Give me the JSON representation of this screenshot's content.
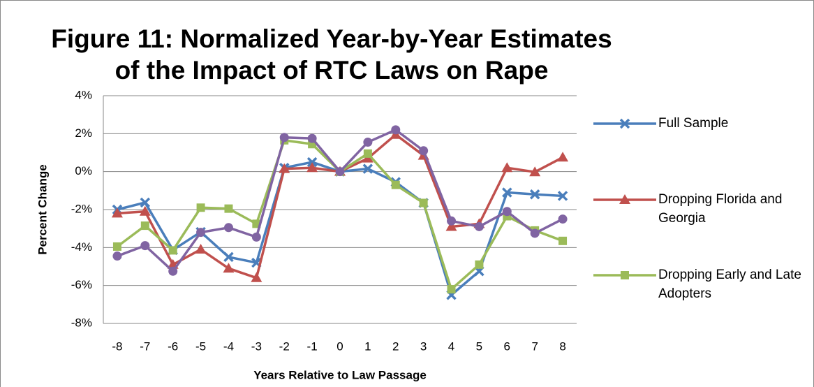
{
  "chart_data": {
    "type": "line",
    "title": [
      "Figure 11: Normalized Year-by-Year Estimates",
      "of the Impact of RTC Laws on Rape"
    ],
    "xlabel": "Years Relative to Law Passage",
    "ylabel": "Percent Change",
    "categories": [
      "-8",
      "-7",
      "-6",
      "-5",
      "-4",
      "-3",
      "-2",
      "-1",
      "0",
      "1",
      "2",
      "3",
      "4",
      "5",
      "6",
      "7",
      "8"
    ],
    "ylim": [
      -8,
      4
    ],
    "yticks": [
      {
        "value": -8,
        "label": "-8%"
      },
      {
        "value": -6,
        "label": "-6%"
      },
      {
        "value": -4,
        "label": "-4%"
      },
      {
        "value": -2,
        "label": "-2%"
      },
      {
        "value": 0,
        "label": "0%"
      },
      {
        "value": 2,
        "label": "2%"
      },
      {
        "value": 4,
        "label": "4%"
      }
    ],
    "grid": true,
    "legend": "right",
    "series": [
      {
        "name": "Full Sample",
        "color": "#4a7ebb",
        "marker": "x",
        "values": [
          -2.0,
          -1.63,
          -4.13,
          -3.18,
          -4.5,
          -4.8,
          0.2,
          0.5,
          0,
          0.15,
          -0.55,
          -1.65,
          -6.5,
          -5.25,
          -1.1,
          -1.2,
          -1.28
        ]
      },
      {
        "name": "Dropping Florida and Georgia",
        "color": "#c0504d",
        "marker": "triangle",
        "values": [
          -2.2,
          -2.1,
          -4.9,
          -4.1,
          -5.1,
          -5.6,
          0.15,
          0.2,
          0,
          0.7,
          1.95,
          0.85,
          -2.9,
          -2.75,
          0.2,
          -0.02,
          0.75
        ]
      },
      {
        "name": "Dropping Early and Late Adopters",
        "color": "#9bbb59",
        "marker": "square",
        "values": [
          -3.95,
          -2.85,
          -4.15,
          -1.9,
          -1.95,
          -2.75,
          1.65,
          1.45,
          0,
          0.95,
          -0.7,
          -1.65,
          -6.2,
          -4.9,
          -2.35,
          -3.1,
          -3.65
        ]
      },
      {
        "color": "#8064a2",
        "marker": "circle",
        "values": [
          -4.45,
          -3.9,
          -5.25,
          -3.2,
          -2.95,
          -3.45,
          1.8,
          1.75,
          0,
          1.55,
          2.2,
          1.1,
          -2.6,
          -2.9,
          -2.1,
          -3.25,
          -2.5
        ]
      }
    ]
  }
}
